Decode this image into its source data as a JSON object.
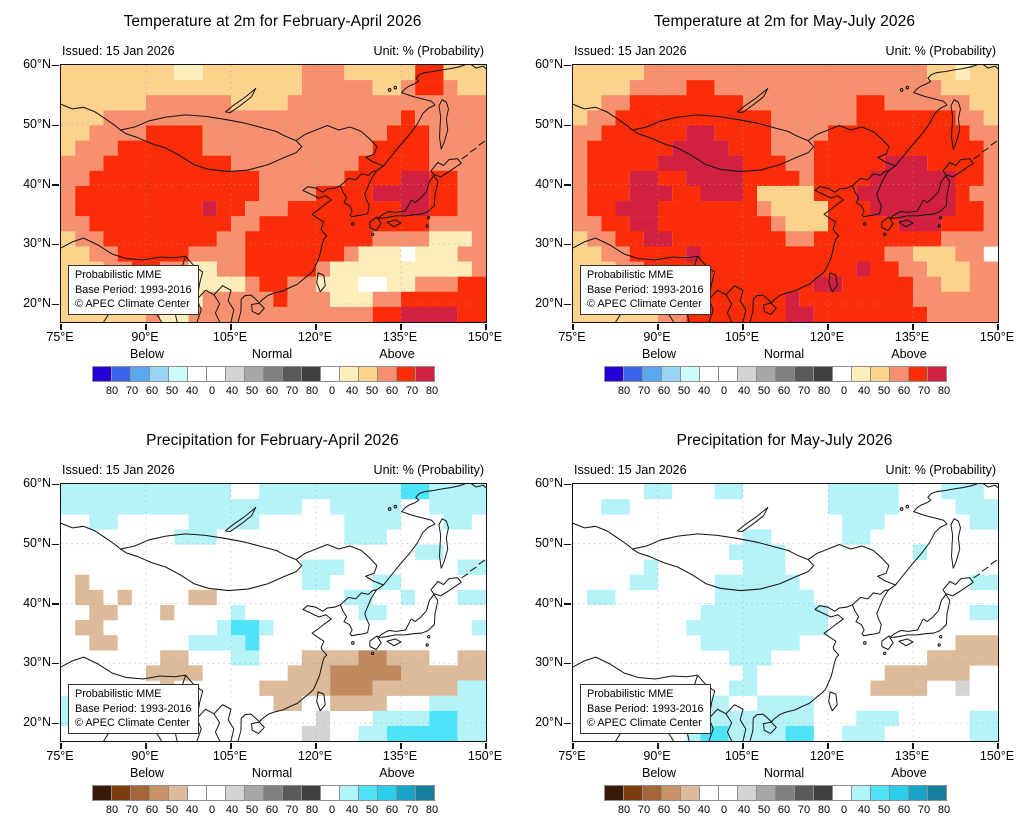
{
  "chart_data": {
    "type": "heatmap",
    "layout": "2x2 panel geographic probability maps, lon 75E-150E, lat ~17N-60N",
    "y_labels": [
      "60°N",
      "50°N",
      "40°N",
      "30°N",
      "20°N"
    ],
    "x_labels": [
      "75°E",
      "90°E",
      "105°E",
      "120°E",
      "135°E",
      "150°E"
    ],
    "lat_ticks_deg": [
      60,
      50,
      40,
      30,
      20
    ],
    "lon_ticks_deg": [
      75,
      90,
      105,
      120,
      135,
      150
    ],
    "scale": {
      "group_labels": [
        "Below",
        "Normal",
        "Above"
      ],
      "tick_labels": [
        "80",
        "70",
        "60",
        "50",
        "40",
        "0",
        "40",
        "50",
        "60",
        "70",
        "80",
        "0",
        "40",
        "50",
        "60",
        "70",
        "80"
      ]
    },
    "grid_legend": {
      "temperature": {
        "W": "<40% (white)",
        "Y": "Above 40-50%",
        "T": "Above 50-60%",
        "S": "Above 60-70%",
        "R": "Above 70-80%",
        "C": "Above >80%"
      },
      "precipitation": {
        "W": "<40% (white)",
        "L": "Above 40-50%",
        "A": "Above 50-60%",
        "P": "Below 40-50%",
        "B": "Below 50-60%",
        "G": "Normal 40-50%"
      }
    },
    "panels": [
      {
        "id": "temp-fma",
        "title": "Temperature at 2m for February-April 2026",
        "issued_label": "Issued: 15 Jan 2026",
        "unit_label": "Unit: % (Probability)",
        "inset": [
          "Probabilistic MME",
          "Base Period: 1993-2016",
          "© APEC Climate Center"
        ],
        "palette": "temperature",
        "grid": [
          "TTTTTTTTYYTTTTTTTSSSTTTTTRRTTT",
          "TTTTTTTTTTTTTTTTTSSSSSTTSRRSTT",
          "TTTTTTSSSSSSTTTTSSSSSSSSSSSSSS",
          "TTTSSSSSSSSSSSSSSSSSSSSSRSSSSS",
          "TTSSSSRRRRSSSSSSSSSSSSSRRRSSSS",
          "TSSSRRRRRRSSSSSSSSSSSSRRRRSSSS",
          "SSSRRRRRRRRRSSSSSSSSSRRRRRSSSS",
          "SSRRRRRRRRRRRRSSSSSSRRRRCCRRSS",
          "SRRRRRRRRRRRRRSSSSRRRRCCCCRRSS",
          "SRRRRRRRRRCRRSSSRRRRRRRRCCRRSS",
          "SSRRRRRRRRRRSSRRRRRRRRRRRRSSSS",
          "TSSRRRRRRRRSSRRRRRRRRRSSSSYYYS",
          "TTSSRRRRRSSSSRRRRRRRSYYYWYYYSS",
          "TTTSSRRSSYYSSRRRRRSYYYYYYYYYYS",
          "TTTTSSSSYYYYYSRRSSYYYWWYYSSSRR",
          "TTTTTSSYYYSSSSSRSSSYYYSSRRRRRR",
          "TTTTTTSYYSSSSSSSSSSSSSRRCCCCRR"
        ]
      },
      {
        "id": "temp-mjj",
        "title": "Temperature at 2m for May-July 2026",
        "issued_label": "Issued: 15 Jan 2026",
        "unit_label": "Unit: % (Probability)",
        "inset": [
          "Probabilistic MME",
          "Base Period: 1993-2016",
          "© APEC Climate Center"
        ],
        "palette": "temperature",
        "grid": [
          "TTTTTSSSSSSSSSSSSSSSSSSSSTTYTT",
          "TTTTSSSSRRSSSSSSSSSSSSSSSSTTTT",
          "TTSSRRRRRRRRSSSSSSSSRRSSSSSSTT",
          "TSSRRRRRRRRRRRSSSSSSRRRRRRRSST",
          "SSRRRRRRCCRRRRSSSSRRRRRRRRRRSS",
          "SRRRRRRCCCCRRRSSSRRRRRRRRRRRRS",
          "SRRRRRCCCCCCRRRSSRRRRRCCCRRRRS",
          "SRRRCCRRCCCCRRRRSRRRRCCCCCCRRS",
          "SRRRCCCRRCCCRTTTTRRRCCCCCCCRSS",
          "SRRCCCRRRRRRRSTTTTRRRCCCCCCRRS",
          "SSRRCCRRRRRRRRSTTTRRRRRCCCRRRS",
          "TSSRRCCRRRRRRRRSSRRRRRRRRRSSSS",
          "TTSSRRRRCRRRRRRRRRRRRRSSTTTSS",
          "TTTSSRRRRRRRRRRRRRRRCRRSSTTTSS",
          "TTTTSRRRRRRRRRRRRCCRRRRRSSTTSS",
          "TTTTTSRRRRRRRRRCRRRRRRRRSSSSSS",
          "TTTTTTSSRRRRRRRCCRRRRRRRRSSSSS"
        ]
      },
      {
        "id": "precip-fma",
        "title": "Precipitation for February-April 2026",
        "issued_label": "Issued: 15 Jan 2026",
        "unit_label": "Unit: % (Probability)",
        "inset": [
          "Probabilistic MME",
          "Base Period: 1993-2016",
          "© APEC Climate Center"
        ],
        "palette": "precipitation",
        "grid": [
          "LLLLLLLLLLLLWWLLLLLLLLLLAALLLL",
          "LLLLLLLLLLLLLLLLLWWLLLLLWWLLLL",
          "WWLLWWWWWLLLLLWWWWWWLLLLWWWLLW",
          "WWWWWWWWLLLWWWWWWWWWLLLWWWWWWW",
          "WWWWWWWWWWWWWWWWWWWWWWWWWLLWWW",
          "WWWWWWWWWWWWWWWWWLLLWWWWWWWWLL",
          "WPWWWWWWWWWWWWWWWLLWWWLLWWWWWW",
          "WPPWPWWWWPPWWWWWWWWWLLWWLWWWLL",
          "WWPPWWWPWWWWLWWWWWWWWLLWWWWWWW",
          "WPPWWWWWWWWLAALWWWWWWWWWWWWWWL",
          "WWPPWWWWWLLLLAWWWWWWWWWWWWWWWW",
          "WWWWWWWPPWWWLLWWWPPPPBBPPPWWPP",
          "WWWWWWPPPPWWWWWWPPPBBBBBPPPPPP",
          "WWWWWWWPWWWWWWPPPPPBBBPPPPPPLL",
          "LLWWWWWWWWWWWWWPPWWPPPPWWWLLLL",
          "LWWWWWWWWWWWWWWWWWGWWWLLLLAALL",
          "WWWWWWWWWWWWWWWWWGGWWLLAAAAALL"
        ]
      },
      {
        "id": "precip-mjj",
        "title": "Precipitation for May-July 2026",
        "issued_label": "Issued: 15 Jan 2026",
        "unit_label": "Unit: % (Probability)",
        "inset": [
          "Probabilistic MME",
          "Base Period: 1993-2016",
          "© APEC Climate Center"
        ],
        "palette": "precipitation",
        "grid": [
          "WWWWWLLWWWLLWWWWWWLLLLLWWWLLLW",
          "WWLLWWWWWWWWWWWWWWLLLLLWWWWLLL",
          "WWWWWWWWWWWWWWWWWWWLLLWWWWWWLL",
          "WWWWWWWWWWWWLLWWWWWLLWWWWWWWWW",
          "WWWWWWWWWWWLLLLWWWWWWWWWLWWWWW",
          "WWWWWLWWWWWWLLLWWWWWWWWWWWWWWW",
          "WWWWLLWWWWLLLLLLWWWWWWWWWWWWLL",
          "WLLWWWWWWWLLLLLLLWWWWWWWWWWWWW",
          "WWWWWWWWWLLLLLLLLLWWWWWWWWWWLL",
          "WWWWWWWWLLLLLLLLLLWWWWWWWWWWWW",
          "WWWWWWWWWLLLLLLLWWWWWWWWWWWPPP",
          "WWWWWWWWWWWLLLWWWWWWWWWWWPPPPP",
          "WWWWWWWWWWWWLWWWWWWWWWPPPPPPWW",
          "WWWWWWWWWWWLLWWWWWWWWPPPPWWGWW",
          "WWWWWWWWWLLWWLLLLWWWWWWWWWWWWW",
          "WWWWWWWWLLLLLLLLLWWWLLLWWWWWLL",
          "WWWWWWWWLAALLLLAAWWLLLWWWWWWLL"
        ]
      }
    ]
  },
  "palettes": {
    "temperature_bar": [
      "#2101d5",
      "#3a63f0",
      "#58a7f0",
      "#99d4f2",
      "#ccfdfc",
      "#ffffff",
      "#ffffff",
      "#d3d3d3",
      "#a6a6a6",
      "#808080",
      "#5a5a5a",
      "#3f3f3f",
      "#ffffff",
      "#fbeebb",
      "#fcd28c",
      "#fa8f6f",
      "#fb2c08",
      "#d22041"
    ],
    "precipitation_bar": [
      "#381a06",
      "#7c3b0c",
      "#a56439",
      "#c79266",
      "#ddbb9b",
      "#ffffff",
      "#ffffff",
      "#d3d3d3",
      "#a6a6a6",
      "#808080",
      "#5a5a5a",
      "#3f3f3f",
      "#ffffff",
      "#aef6fb",
      "#4fe3f8",
      "#2cd0ef",
      "#17a4c8",
      "#147e9b"
    ],
    "temperature_map_keys": {
      "T": "#fcd28c",
      "S": "#f7906f",
      "R": "#fb2c08",
      "C": "#d22041",
      "Y": "#fbeebb",
      "W": "#ffffff"
    },
    "precipitation_map_keys": {
      "W": "#ffffff",
      "L": "#b5f3f8",
      "A": "#4fe3f8",
      "P": "#dcba9a",
      "B": "#c08a5e",
      "G": "#d4d4d4"
    },
    "coastline_color": "#161616",
    "frame_color": "#111111",
    "gridline_color": "#9aa0a6"
  }
}
